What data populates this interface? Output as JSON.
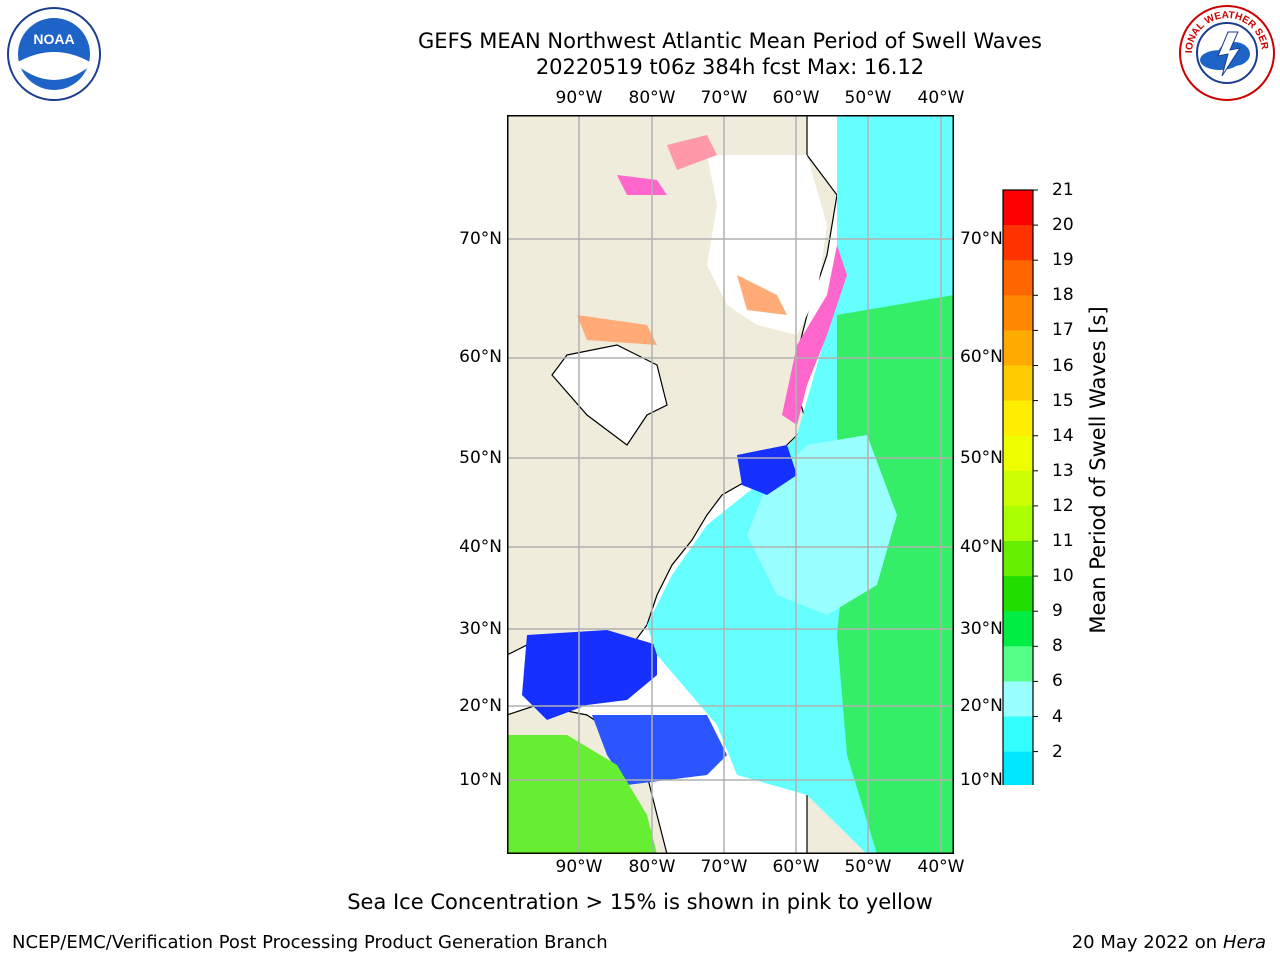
{
  "header": {
    "title_line1": "GEFS MEAN Northwest Atlantic Mean Period of Swell Waves",
    "title_line2": "20220519 t06z 384h fcst   Max: 16.12"
  },
  "logos": {
    "left": "NOAA",
    "right": "NATIONAL WEATHER SERVICE"
  },
  "map": {
    "lon_labels": [
      "90°W",
      "80°W",
      "70°W",
      "60°W",
      "50°W",
      "40°W"
    ],
    "lat_labels": [
      "70°N",
      "60°N",
      "50°N",
      "40°N",
      "30°N",
      "20°N",
      "10°N"
    ]
  },
  "colorbar": {
    "label": "Mean Period of Swell Waves [s]",
    "ticks": [
      "21",
      "20",
      "19",
      "18",
      "17",
      "16",
      "15",
      "14",
      "13",
      "12",
      "11",
      "10",
      "9",
      "8",
      "6",
      "4",
      "2"
    ],
    "colors": [
      "#ff0000",
      "#ff3300",
      "#ff6600",
      "#ff8800",
      "#ffaa00",
      "#ffcc00",
      "#ffee00",
      "#eeff00",
      "#ccff00",
      "#aaff00",
      "#66ee00",
      "#22dd00",
      "#00ee44",
      "#55ff88",
      "#99ffff",
      "#33ffff",
      "#00e8ff",
      "#0077ff"
    ],
    "under_color": "#0000ee"
  },
  "caption": "Sea Ice Concentration > 15% is shown in pink to yellow",
  "footer": {
    "left": "NCEP/EMC/Verification Post Processing Product Generation Branch",
    "right_date": "20 May 2022 on",
    "right_host": "Hera"
  }
}
